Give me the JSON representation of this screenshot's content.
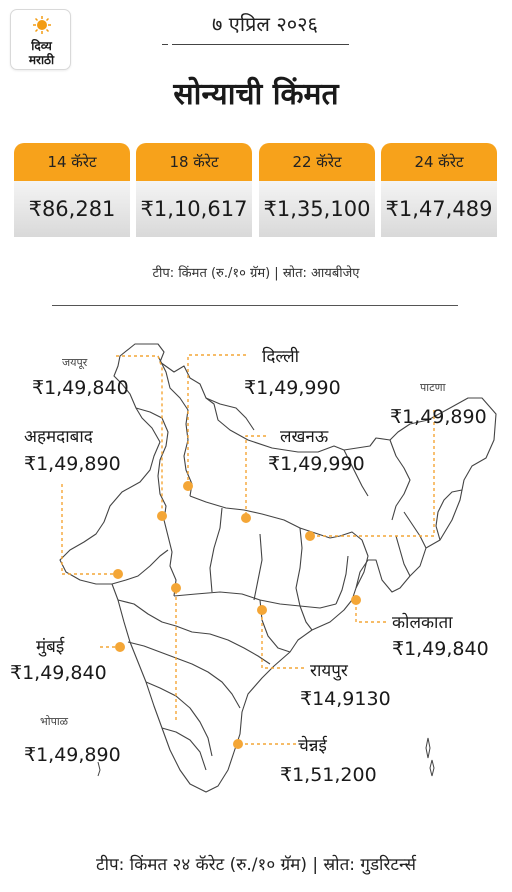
{
  "brand": {
    "line1": "दिव्य",
    "line2": "मराठी"
  },
  "date": "७ एप्रिल २०२६",
  "title": "सोन्याची किंमत",
  "karat_cards": [
    {
      "label": "14 कॅरेट",
      "price": "₹86,281"
    },
    {
      "label": "18 कॅरेट",
      "price": "₹1,10,617"
    },
    {
      "label": "22 कॅरेट",
      "price": "₹1,35,100"
    },
    {
      "label": "24 कॅरेट",
      "price": "₹1,47,489"
    }
  ],
  "note_top": "टीप: किंमत (रु./१० ग्रॅम) | स्रोत: आयबीजेए",
  "cities": [
    {
      "name": "जयपूर",
      "price": "₹1,49,840"
    },
    {
      "name": "दिल्ली",
      "price": "₹1,49,990"
    },
    {
      "name": "पाटणा",
      "price": "₹1,49,890"
    },
    {
      "name": "अहमदाबाद",
      "price": "₹1,49,890"
    },
    {
      "name": "लखनऊ",
      "price": "₹1,49,990"
    },
    {
      "name": "कोलकाता",
      "price": "₹1,49,840"
    },
    {
      "name": "मुंबई",
      "price": "₹1,49,840"
    },
    {
      "name": "रायपुर",
      "price": "₹14,9130"
    },
    {
      "name": "भोपाळ",
      "price": "₹1,49,890"
    },
    {
      "name": "चेन्नई",
      "price": "₹1,51,200"
    }
  ],
  "note_bottom": "टीप: किंमत २४ कॅरेट (रु./१० ग्रॅम) | स्रोत: गुडरिटर्न्स",
  "colors": {
    "accent": "#f7a21b",
    "dot": "#f4a636",
    "map_stroke": "#444444"
  }
}
